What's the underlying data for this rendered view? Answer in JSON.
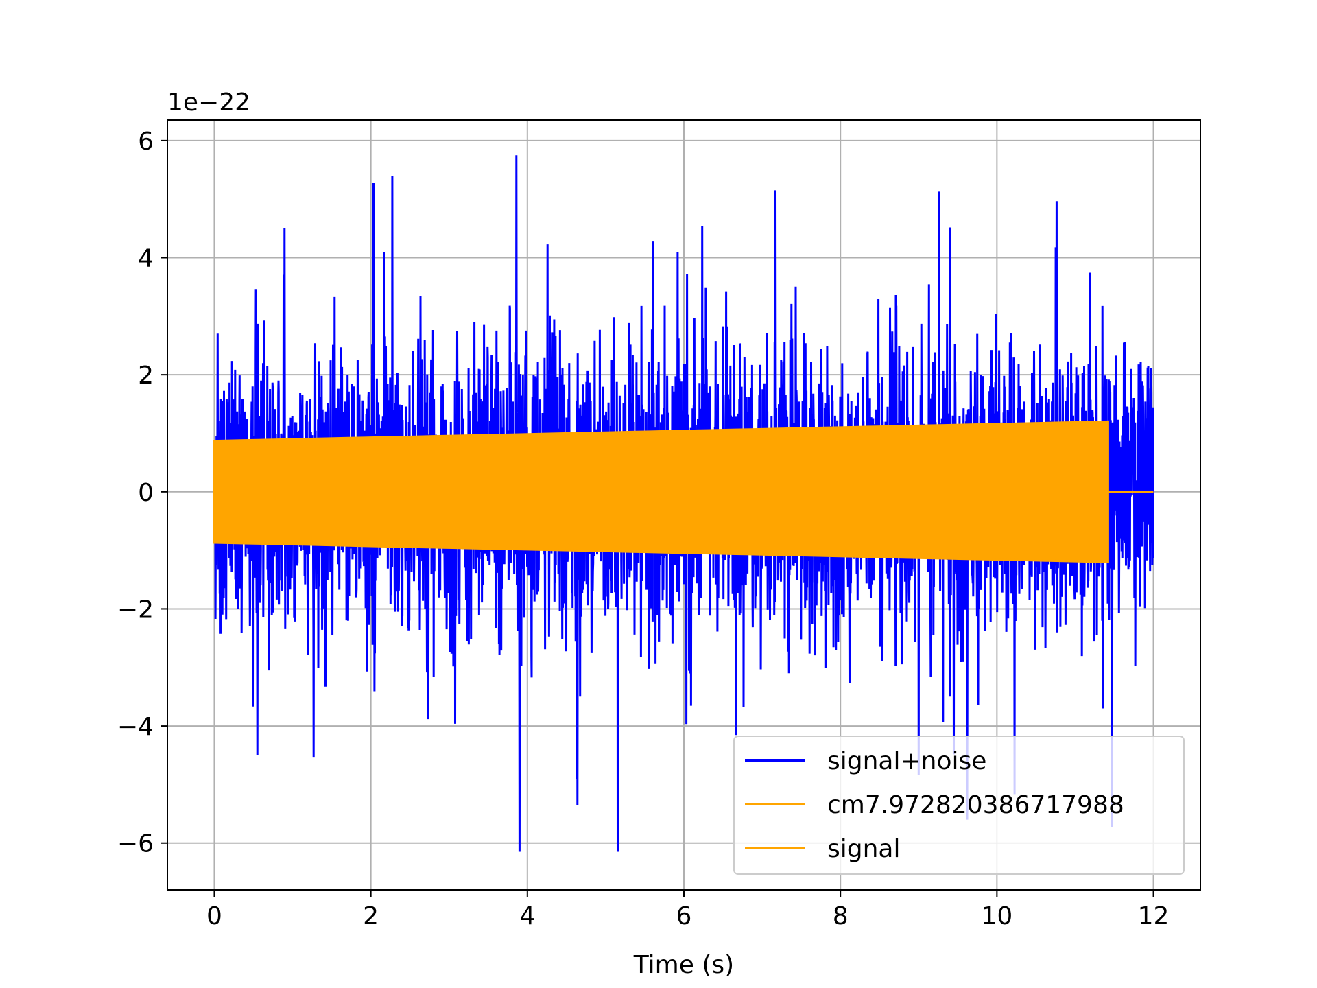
{
  "chart_data": {
    "type": "line",
    "xlabel": "Time (s)",
    "ylabel": "",
    "offset_text": "1e−22",
    "xlim": [
      -0.6,
      12.6
    ],
    "ylim": [
      -6.8,
      6.35
    ],
    "xticks": [
      0,
      2,
      4,
      6,
      8,
      10,
      12
    ],
    "xtick_labels": [
      "0",
      "2",
      "4",
      "6",
      "8",
      "10",
      "12"
    ],
    "yticks": [
      -6,
      -4,
      -2,
      0,
      2,
      4,
      6
    ],
    "ytick_labels": [
      "−6",
      "−4",
      "−2",
      "0",
      "2",
      "4",
      "6"
    ],
    "grid": true,
    "legend_position": "lower-right",
    "series": [
      {
        "name": "signal+noise",
        "color": "#0000ff",
        "x_range": [
          0,
          12
        ],
        "typical_amplitude": 1.7,
        "peak_max": 5.75,
        "peak_min": -6.15
      },
      {
        "name": "cm7.972820386717988",
        "color": "#ffa500",
        "x_range": [
          0,
          12
        ],
        "note_visible": false
      },
      {
        "name": "signal",
        "color": "#ffa500",
        "x_range": [
          0,
          12
        ],
        "active_end": 11.42,
        "amplitude_start": 0.87,
        "amplitude_end": 1.2
      }
    ]
  }
}
